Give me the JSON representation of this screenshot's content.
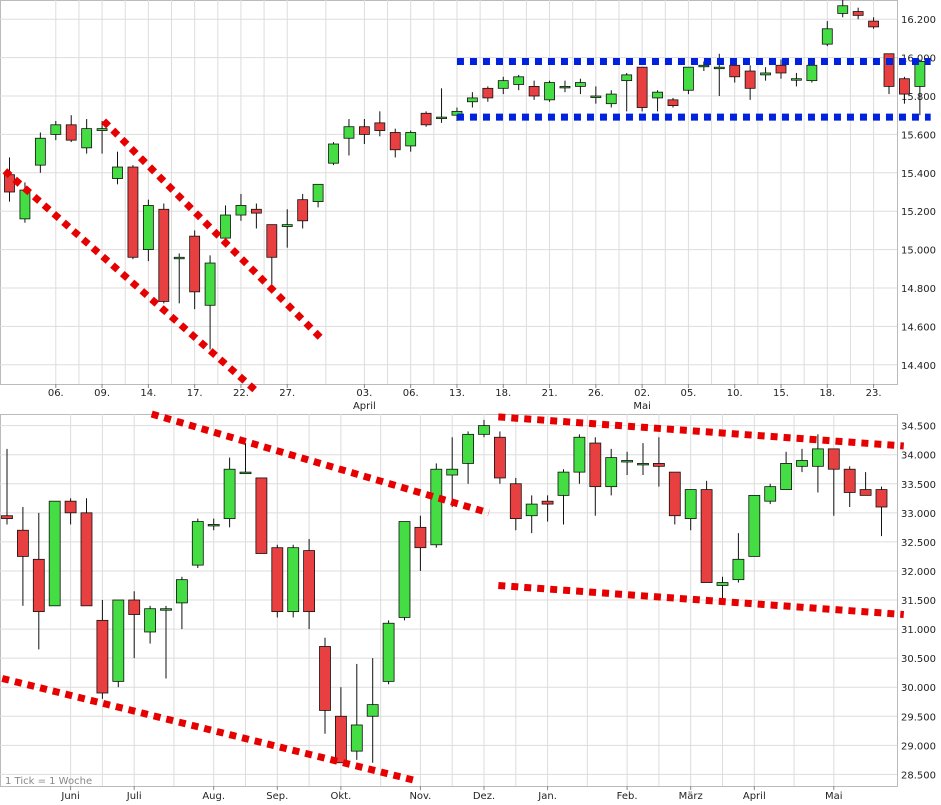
{
  "colors": {
    "up": "#44dd44",
    "down": "#e84040",
    "grid": "#dddddd",
    "channel_red": "#e60000",
    "channel_blue": "#0022dd",
    "frame": "#bbbbbb"
  },
  "chart_data": [
    {
      "type": "candlestick",
      "panel": "daily",
      "grid": true,
      "ylim": [
        14300,
        16300
      ],
      "y_tick_labels": [
        "14.400",
        "14.600",
        "14.800",
        "15.000",
        "15.200",
        "15.400",
        "15.600",
        "15.800",
        "16.000",
        "16.200"
      ],
      "y_tick_values": [
        14400,
        14600,
        14800,
        15000,
        15200,
        15400,
        15600,
        15800,
        16000,
        16200
      ],
      "x_tick_labels": [
        {
          "label": "06.",
          "index": 3
        },
        {
          "label": "09.",
          "index": 6
        },
        {
          "label": "14.",
          "index": 9
        },
        {
          "label": "17.",
          "index": 12
        },
        {
          "label": "22.",
          "index": 15
        },
        {
          "label": "27.",
          "index": 18
        },
        {
          "label": "03.",
          "index": 23
        },
        {
          "label": "06.",
          "index": 26
        },
        {
          "label": "13.",
          "index": 29
        },
        {
          "label": "18.",
          "index": 32
        },
        {
          "label": "21.",
          "index": 35
        },
        {
          "label": "26.",
          "index": 38
        },
        {
          "label": "02.",
          "index": 41
        },
        {
          "label": "05.",
          "index": 44
        },
        {
          "label": "10.",
          "index": 47
        },
        {
          "label": "15.",
          "index": 50
        },
        {
          "label": "18.",
          "index": 53
        },
        {
          "label": "23.",
          "index": 56
        }
      ],
      "month_labels": [
        {
          "label": "April",
          "index": 23
        },
        {
          "label": "Mai",
          "index": 41
        }
      ],
      "candles": [
        {
          "o": 15390,
          "h": 15480,
          "l": 15250,
          "c": 15300
        },
        {
          "o": 15160,
          "h": 15350,
          "l": 15140,
          "c": 15310
        },
        {
          "o": 15440,
          "h": 15610,
          "l": 15400,
          "c": 15580
        },
        {
          "o": 15600,
          "h": 15670,
          "l": 15570,
          "c": 15650
        },
        {
          "o": 15650,
          "h": 15700,
          "l": 15560,
          "c": 15570
        },
        {
          "o": 15530,
          "h": 15680,
          "l": 15500,
          "c": 15630
        },
        {
          "o": 15620,
          "h": 15670,
          "l": 15500,
          "c": 15630
        },
        {
          "o": 15370,
          "h": 15510,
          "l": 15340,
          "c": 15430
        },
        {
          "o": 15430,
          "h": 15440,
          "l": 14950,
          "c": 14960
        },
        {
          "o": 15000,
          "h": 15260,
          "l": 14940,
          "c": 15230
        },
        {
          "o": 15210,
          "h": 15240,
          "l": 14720,
          "c": 14730
        },
        {
          "o": 14960,
          "h": 14980,
          "l": 14720,
          "c": 14960
        },
        {
          "o": 15070,
          "h": 15100,
          "l": 14690,
          "c": 14780
        },
        {
          "o": 14710,
          "h": 14970,
          "l": 14480,
          "c": 14930
        },
        {
          "o": 15060,
          "h": 15230,
          "l": 15020,
          "c": 15180
        },
        {
          "o": 15180,
          "h": 15290,
          "l": 15150,
          "c": 15230
        },
        {
          "o": 15210,
          "h": 15240,
          "l": 15110,
          "c": 15190
        },
        {
          "o": 15130,
          "h": 15130,
          "l": 14820,
          "c": 14960
        },
        {
          "o": 15120,
          "h": 15210,
          "l": 15010,
          "c": 15130
        },
        {
          "o": 15260,
          "h": 15290,
          "l": 15110,
          "c": 15150
        },
        {
          "o": 15250,
          "h": 15340,
          "l": 15220,
          "c": 15340
        },
        {
          "o": 15450,
          "h": 15560,
          "l": 15440,
          "c": 15550
        },
        {
          "o": 15580,
          "h": 15680,
          "l": 15490,
          "c": 15640
        },
        {
          "o": 15640,
          "h": 15680,
          "l": 15550,
          "c": 15600
        },
        {
          "o": 15660,
          "h": 15720,
          "l": 15590,
          "c": 15620
        },
        {
          "o": 15610,
          "h": 15630,
          "l": 15480,
          "c": 15520
        },
        {
          "o": 15540,
          "h": 15620,
          "l": 15510,
          "c": 15610
        },
        {
          "o": 15710,
          "h": 15720,
          "l": 15640,
          "c": 15650
        },
        {
          "o": 15690,
          "h": 15840,
          "l": 15660,
          "c": 15690
        },
        {
          "o": 15700,
          "h": 15740,
          "l": 15670,
          "c": 15720
        },
        {
          "o": 15770,
          "h": 15820,
          "l": 15740,
          "c": 15790
        },
        {
          "o": 15840,
          "h": 15850,
          "l": 15770,
          "c": 15790
        },
        {
          "o": 15840,
          "h": 15900,
          "l": 15810,
          "c": 15880
        },
        {
          "o": 15860,
          "h": 15910,
          "l": 15830,
          "c": 15900
        },
        {
          "o": 15850,
          "h": 15880,
          "l": 15780,
          "c": 15800
        },
        {
          "o": 15780,
          "h": 15880,
          "l": 15770,
          "c": 15870
        },
        {
          "o": 15850,
          "h": 15880,
          "l": 15820,
          "c": 15850
        },
        {
          "o": 15850,
          "h": 15890,
          "l": 15810,
          "c": 15870
        },
        {
          "o": 15800,
          "h": 15850,
          "l": 15760,
          "c": 15800
        },
        {
          "o": 15760,
          "h": 15830,
          "l": 15740,
          "c": 15810
        },
        {
          "o": 15880,
          "h": 15920,
          "l": 15720,
          "c": 15910
        },
        {
          "o": 15950,
          "h": 15950,
          "l": 15720,
          "c": 15740
        },
        {
          "o": 15790,
          "h": 15830,
          "l": 15720,
          "c": 15820
        },
        {
          "o": 15780,
          "h": 15790,
          "l": 15740,
          "c": 15750
        },
        {
          "o": 15830,
          "h": 15950,
          "l": 15810,
          "c": 15950
        },
        {
          "o": 15960,
          "h": 15980,
          "l": 15930,
          "c": 15960
        },
        {
          "o": 15950,
          "h": 16020,
          "l": 15800,
          "c": 15950
        },
        {
          "o": 15960,
          "h": 15980,
          "l": 15870,
          "c": 15900
        },
        {
          "o": 15930,
          "h": 15960,
          "l": 15780,
          "c": 15840
        },
        {
          "o": 15910,
          "h": 15950,
          "l": 15880,
          "c": 15920
        },
        {
          "o": 15960,
          "h": 15990,
          "l": 15890,
          "c": 15920
        },
        {
          "o": 15890,
          "h": 15920,
          "l": 15850,
          "c": 15890
        },
        {
          "o": 15880,
          "h": 15980,
          "l": 15870,
          "c": 15960
        },
        {
          "o": 16070,
          "h": 16190,
          "l": 16060,
          "c": 16150
        },
        {
          "o": 16230,
          "h": 16310,
          "l": 16210,
          "c": 16270
        },
        {
          "o": 16240,
          "h": 16260,
          "l": 16200,
          "c": 16220
        },
        {
          "o": 16190,
          "h": 16210,
          "l": 16150,
          "c": 16160
        },
        {
          "o": 16020,
          "h": 16020,
          "l": 15810,
          "c": 15850
        },
        {
          "o": 15890,
          "h": 15900,
          "l": 15760,
          "c": 15810
        },
        {
          "o": 15850,
          "h": 15990,
          "l": 15700,
          "c": 15980
        }
      ],
      "channels": [
        {
          "color": "channel_red",
          "p1": [
            -0.3,
            15410
          ],
          "p2": [
            15.9,
            14270
          ]
        },
        {
          "color": "channel_red",
          "p1": [
            6.1,
            15670
          ],
          "p2": [
            20.3,
            14530
          ]
        },
        {
          "color": "channel_blue",
          "p1": [
            29.0,
            15980
          ],
          "p2": [
            59.7,
            15980
          ]
        },
        {
          "color": "channel_blue",
          "p1": [
            29.0,
            15690
          ],
          "p2": [
            59.7,
            15690
          ]
        }
      ]
    },
    {
      "type": "candlestick",
      "panel": "weekly",
      "grid": true,
      "ylim": [
        28300,
        34700
      ],
      "y_tick_labels": [
        "28.500",
        "29.000",
        "29.500",
        "30.000",
        "30.500",
        "31.000",
        "31.500",
        "32.000",
        "32.500",
        "33.000",
        "33.500",
        "34.000",
        "34.500"
      ],
      "y_tick_values": [
        28500,
        29000,
        29500,
        30000,
        30500,
        31000,
        31500,
        32000,
        32500,
        33000,
        33500,
        34000,
        34500
      ],
      "x_tick_labels": [
        {
          "label": "Juni",
          "index": 4
        },
        {
          "label": "Juli",
          "index": 8
        },
        {
          "label": "Aug.",
          "index": 13
        },
        {
          "label": "Sep.",
          "index": 17
        },
        {
          "label": "Okt.",
          "index": 21
        },
        {
          "label": "Nov.",
          "index": 26
        },
        {
          "label": "Dez.",
          "index": 30
        },
        {
          "label": "Jan.",
          "index": 34
        },
        {
          "label": "Feb.",
          "index": 39
        },
        {
          "label": "März",
          "index": 43
        },
        {
          "label": "April",
          "index": 47
        },
        {
          "label": "Mai",
          "index": 52
        }
      ],
      "note": "1 Tick = 1 Woche",
      "candles": [
        {
          "o": 32950,
          "h": 34100,
          "l": 32800,
          "c": 32900
        },
        {
          "o": 32700,
          "h": 33100,
          "l": 31400,
          "c": 32250
        },
        {
          "o": 32200,
          "h": 33000,
          "l": 30650,
          "c": 31300
        },
        {
          "o": 31400,
          "h": 33200,
          "l": 31400,
          "c": 33200
        },
        {
          "o": 33200,
          "h": 33250,
          "l": 32800,
          "c": 33000
        },
        {
          "o": 33000,
          "h": 33250,
          "l": 31400,
          "c": 31400
        },
        {
          "o": 31150,
          "h": 31500,
          "l": 29800,
          "c": 29900
        },
        {
          "o": 30100,
          "h": 31500,
          "l": 30000,
          "c": 31500
        },
        {
          "o": 31500,
          "h": 31650,
          "l": 30500,
          "c": 31250
        },
        {
          "o": 30950,
          "h": 31400,
          "l": 30750,
          "c": 31350
        },
        {
          "o": 31350,
          "h": 31400,
          "l": 30150,
          "c": 31350
        },
        {
          "o": 31450,
          "h": 31900,
          "l": 31000,
          "c": 31850
        },
        {
          "o": 32100,
          "h": 32900,
          "l": 32050,
          "c": 32850
        },
        {
          "o": 32800,
          "h": 32900,
          "l": 32700,
          "c": 32800
        },
        {
          "o": 32900,
          "h": 33950,
          "l": 32750,
          "c": 33750
        },
        {
          "o": 33700,
          "h": 34200,
          "l": 33700,
          "c": 33700
        },
        {
          "o": 33600,
          "h": 33600,
          "l": 32300,
          "c": 32300
        },
        {
          "o": 32400,
          "h": 32450,
          "l": 31200,
          "c": 31300
        },
        {
          "o": 31300,
          "h": 32450,
          "l": 31200,
          "c": 32400
        },
        {
          "o": 32350,
          "h": 32550,
          "l": 31000,
          "c": 31300
        },
        {
          "o": 30700,
          "h": 30850,
          "l": 29200,
          "c": 29600
        },
        {
          "o": 29500,
          "h": 30000,
          "l": 28700,
          "c": 28700
        },
        {
          "o": 28900,
          "h": 30400,
          "l": 28750,
          "c": 29350
        },
        {
          "o": 29500,
          "h": 30500,
          "l": 28700,
          "c": 29700
        },
        {
          "o": 30100,
          "h": 31150,
          "l": 30050,
          "c": 31100
        },
        {
          "o": 31200,
          "h": 32850,
          "l": 31150,
          "c": 32850
        },
        {
          "o": 32750,
          "h": 32950,
          "l": 32000,
          "c": 32400
        },
        {
          "o": 32450,
          "h": 33850,
          "l": 32400,
          "c": 33750
        },
        {
          "o": 33650,
          "h": 34300,
          "l": 33100,
          "c": 33750
        },
        {
          "o": 33850,
          "h": 34400,
          "l": 33500,
          "c": 34350
        },
        {
          "o": 34350,
          "h": 34600,
          "l": 34300,
          "c": 34500
        },
        {
          "o": 34300,
          "h": 34400,
          "l": 33500,
          "c": 33600
        },
        {
          "o": 33500,
          "h": 33600,
          "l": 32700,
          "c": 32900
        },
        {
          "o": 32950,
          "h": 33300,
          "l": 32650,
          "c": 33150
        },
        {
          "o": 33200,
          "h": 33300,
          "l": 32850,
          "c": 33150
        },
        {
          "o": 33300,
          "h": 33750,
          "l": 32800,
          "c": 33700
        },
        {
          "o": 33700,
          "h": 34350,
          "l": 33500,
          "c": 34300
        },
        {
          "o": 34200,
          "h": 34300,
          "l": 32950,
          "c": 33450
        },
        {
          "o": 33450,
          "h": 34100,
          "l": 33300,
          "c": 33950
        },
        {
          "o": 33900,
          "h": 34050,
          "l": 33650,
          "c": 33900
        },
        {
          "o": 33850,
          "h": 34200,
          "l": 33650,
          "c": 33850
        },
        {
          "o": 33850,
          "h": 34300,
          "l": 33450,
          "c": 33800
        },
        {
          "o": 33700,
          "h": 33700,
          "l": 32800,
          "c": 32950
        },
        {
          "o": 32900,
          "h": 33400,
          "l": 32700,
          "c": 33400
        },
        {
          "o": 33400,
          "h": 33550,
          "l": 31800,
          "c": 31800
        },
        {
          "o": 31750,
          "h": 31900,
          "l": 31500,
          "c": 31800
        },
        {
          "o": 31850,
          "h": 32650,
          "l": 31800,
          "c": 32200
        },
        {
          "o": 32250,
          "h": 33300,
          "l": 32250,
          "c": 33300
        },
        {
          "o": 33200,
          "h": 33500,
          "l": 33150,
          "c": 33450
        },
        {
          "o": 33400,
          "h": 34050,
          "l": 33400,
          "c": 33850
        },
        {
          "o": 33800,
          "h": 34100,
          "l": 33700,
          "c": 33900
        },
        {
          "o": 33800,
          "h": 34350,
          "l": 33350,
          "c": 34100
        },
        {
          "o": 34100,
          "h": 34100,
          "l": 32950,
          "c": 33750
        },
        {
          "o": 33750,
          "h": 33800,
          "l": 33100,
          "c": 33350
        },
        {
          "o": 33400,
          "h": 33700,
          "l": 33300,
          "c": 33300
        },
        {
          "o": 33400,
          "h": 33450,
          "l": 32600,
          "c": 33100
        }
      ],
      "channels": [
        {
          "color": "channel_red",
          "p1": [
            -0.3,
            30150
          ],
          "p2": [
            25.6,
            28400
          ]
        },
        {
          "color": "channel_red",
          "p1": [
            9.1,
            34700
          ],
          "p2": [
            30.3,
            33000
          ]
        },
        {
          "color": "channel_red",
          "p1": [
            30.9,
            34650
          ],
          "p2": [
            56.4,
            34150
          ]
        },
        {
          "color": "channel_red",
          "p1": [
            30.9,
            31750
          ],
          "p2": [
            56.4,
            31250
          ]
        }
      ]
    }
  ]
}
